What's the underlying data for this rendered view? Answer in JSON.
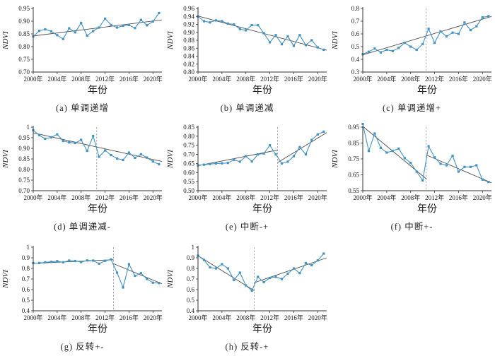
{
  "figure_name": "NDVI trend type examples",
  "axis": {
    "xlabel": "年份",
    "ylabel": "NDVI",
    "x_min": 2000,
    "x_max": 2021.5,
    "x_tick_years": [
      2000,
      2004,
      2008,
      2012,
      2016,
      2020
    ],
    "x_tick_labels": [
      "2000年",
      "2004年",
      "2008年",
      "2012年",
      "2016年",
      "2020年"
    ]
  },
  "colors": {
    "series": "#4393c3",
    "trend": "#4d4d4d",
    "vline": "#9e9e9e",
    "axis": "#333333",
    "text": "#1a1a1a"
  },
  "chart_data": [
    {
      "type": "line",
      "id": "a",
      "title": "(a) 单调递增",
      "xlabel": "年份",
      "ylabel": "NDVI",
      "x_start_year": 2000,
      "x_step": 1,
      "ylim": [
        0.7,
        0.95
      ],
      "yticks": [
        0.7,
        0.75,
        0.8,
        0.85,
        0.9,
        0.95
      ],
      "ytick_labels": [
        "0.70",
        "0.75",
        "0.80",
        "0.85",
        "0.90",
        "0.95"
      ],
      "values": [
        0.84,
        0.862,
        0.868,
        0.86,
        0.845,
        0.83,
        0.872,
        0.856,
        0.893,
        0.843,
        0.861,
        0.875,
        0.91,
        0.885,
        0.875,
        0.882,
        0.885,
        0.873,
        0.905,
        0.884,
        0.899,
        0.932
      ],
      "trend_segments": [
        {
          "x1": 2000,
          "y1": 0.842,
          "x2": 2021.5,
          "y2": 0.905
        }
      ],
      "vline_x": null
    },
    {
      "type": "line",
      "id": "b",
      "title": "(b) 单调递减",
      "xlabel": "年份",
      "ylabel": "NDVI",
      "x_start_year": 2000,
      "x_step": 1,
      "ylim": [
        0.8,
        0.96
      ],
      "yticks": [
        0.8,
        0.82,
        0.84,
        0.86,
        0.88,
        0.9,
        0.92,
        0.94,
        0.96
      ],
      "ytick_labels": [
        "0.80",
        "0.82",
        "0.84",
        "0.86",
        "0.88",
        "0.90",
        "0.92",
        "0.94",
        "0.96"
      ],
      "values": [
        0.94,
        0.928,
        0.925,
        0.93,
        0.928,
        0.922,
        0.92,
        0.908,
        0.905,
        0.918,
        0.918,
        0.898,
        0.875,
        0.893,
        0.87,
        0.89,
        0.866,
        0.893,
        0.868,
        0.88,
        0.862,
        0.856
      ],
      "trend_segments": [
        {
          "x1": 2000,
          "y1": 0.941,
          "x2": 2021.5,
          "y2": 0.855
        }
      ],
      "vline_x": null
    },
    {
      "type": "line",
      "id": "c",
      "title": "(c) 单调递增+",
      "xlabel": "年份",
      "ylabel": "NDVI",
      "x_start_year": 2000,
      "x_step": 1,
      "ylim": [
        0.3,
        0.8
      ],
      "yticks": [
        0.3,
        0.4,
        0.5,
        0.6,
        0.7,
        0.8
      ],
      "ytick_labels": [
        "0.3",
        "0.4",
        "0.5",
        "0.6",
        "0.7",
        "0.8"
      ],
      "values": [
        0.44,
        0.46,
        0.485,
        0.455,
        0.475,
        0.465,
        0.49,
        0.53,
        0.5,
        0.475,
        0.52,
        0.64,
        0.53,
        0.62,
        0.58,
        0.61,
        0.6,
        0.69,
        0.63,
        0.66,
        0.73,
        0.74
      ],
      "trend_segments": [
        {
          "x1": 2000,
          "y1": 0.435,
          "x2": 2021.5,
          "y2": 0.737
        }
      ],
      "vline_x": 2010.6
    },
    {
      "type": "line",
      "id": "d",
      "title": "(d) 单调递减-",
      "xlabel": "年份",
      "ylabel": "NDVI",
      "x_start_year": 2000,
      "x_step": 1,
      "ylim": [
        0.7,
        1.0
      ],
      "yticks": [
        0.7,
        0.75,
        0.8,
        0.85,
        0.9,
        0.95,
        1.0
      ],
      "ytick_labels": [
        "0.70",
        "0.75",
        "0.80",
        "0.85",
        "0.90",
        "0.95",
        "1"
      ],
      "values": [
        0.985,
        0.962,
        0.945,
        0.952,
        0.966,
        0.935,
        0.928,
        0.925,
        0.94,
        0.888,
        0.958,
        0.86,
        0.89,
        0.868,
        0.852,
        0.845,
        0.88,
        0.855,
        0.872,
        0.856,
        0.838,
        0.825
      ],
      "trend_segments": [
        {
          "x1": 2000,
          "y1": 0.973,
          "x2": 2021.5,
          "y2": 0.838
        }
      ],
      "vline_x": 2010.6
    },
    {
      "type": "line",
      "id": "e",
      "title": "(e) 中断-+",
      "xlabel": "年份",
      "ylabel": "NDVI",
      "x_start_year": 2000,
      "x_step": 1,
      "ylim": [
        0.5,
        0.85
      ],
      "yticks": [
        0.5,
        0.55,
        0.6,
        0.65,
        0.7,
        0.75,
        0.8,
        0.85
      ],
      "ytick_labels": [
        "0.50",
        "0.55",
        "0.60",
        "0.65",
        "0.70",
        "0.75",
        "0.80",
        "0.85"
      ],
      "values": [
        0.64,
        0.643,
        0.647,
        0.65,
        0.651,
        0.653,
        0.67,
        0.66,
        0.69,
        0.661,
        0.7,
        0.705,
        0.75,
        0.7,
        0.65,
        0.66,
        0.69,
        0.74,
        0.7,
        0.78,
        0.81,
        0.825
      ],
      "trend_segments": [
        {
          "x1": 2000,
          "y1": 0.638,
          "x2": 2013.3,
          "y2": 0.724
        },
        {
          "x1": 2013.3,
          "y1": 0.655,
          "x2": 2021.5,
          "y2": 0.82
        }
      ],
      "vline_x": 2013.3
    },
    {
      "type": "line",
      "id": "f",
      "title": "(f) 中断+-",
      "xlabel": "年份",
      "ylabel": "NDVI",
      "x_start_year": 2000,
      "x_step": 1,
      "ylim": [
        0.55,
        0.95
      ],
      "yticks": [
        0.55,
        0.65,
        0.75,
        0.85,
        0.95
      ],
      "ytick_labels": [
        "0.55",
        "0.65",
        "0.75",
        "0.85",
        "0.95"
      ],
      "values": [
        0.97,
        0.8,
        0.91,
        0.82,
        0.79,
        0.8,
        0.815,
        0.755,
        0.725,
        0.67,
        0.615,
        0.83,
        0.76,
        0.72,
        0.71,
        0.77,
        0.67,
        0.7,
        0.7,
        0.71,
        0.62,
        0.605
      ],
      "trend_segments": [
        {
          "x1": 2000,
          "y1": 0.955,
          "x2": 2010.6,
          "y2": 0.625
        },
        {
          "x1": 2010.6,
          "y1": 0.775,
          "x2": 2021.5,
          "y2": 0.6
        }
      ],
      "vline_x": 2010.6
    },
    {
      "type": "line",
      "id": "g",
      "title": "(g) 反转+-",
      "xlabel": "年份",
      "ylabel": "NDVI",
      "x_start_year": 2000,
      "x_step": 1,
      "ylim": [
        0.4,
        1.0
      ],
      "yticks": [
        0.4,
        0.5,
        0.6,
        0.7,
        0.8,
        0.9,
        1.0
      ],
      "ytick_labels": [
        "0.4",
        "0.5",
        "0.6",
        "0.7",
        "0.8",
        "0.9",
        "1"
      ],
      "values": [
        0.85,
        0.851,
        0.858,
        0.862,
        0.868,
        0.858,
        0.874,
        0.87,
        0.86,
        0.875,
        0.874,
        0.845,
        0.872,
        0.885,
        0.76,
        0.62,
        0.84,
        0.73,
        0.755,
        0.7,
        0.665,
        0.662
      ],
      "trend_segments": [
        {
          "x1": 2000,
          "y1": 0.848,
          "x2": 2013.4,
          "y2": 0.882
        },
        {
          "x1": 2013.4,
          "y1": 0.845,
          "x2": 2021.5,
          "y2": 0.655
        }
      ],
      "vline_x": 2013.4
    },
    {
      "type": "line",
      "id": "h",
      "title": "(h) 反转-+",
      "xlabel": "年份",
      "ylabel": "NDVI",
      "x_start_year": 2000,
      "x_step": 1,
      "ylim": [
        0.4,
        1.0
      ],
      "yticks": [
        0.4,
        0.5,
        0.6,
        0.7,
        0.8,
        0.9,
        1.0
      ],
      "ytick_labels": [
        "0.4",
        "0.5",
        "0.6",
        "0.7",
        "0.8",
        "0.9",
        "1"
      ],
      "values": [
        0.92,
        0.88,
        0.81,
        0.8,
        0.84,
        0.8,
        0.69,
        0.76,
        0.64,
        0.59,
        0.72,
        0.67,
        0.71,
        0.72,
        0.7,
        0.75,
        0.8,
        0.755,
        0.85,
        0.83,
        0.875,
        0.94
      ],
      "trend_segments": [
        {
          "x1": 2000,
          "y1": 0.92,
          "x2": 2009.4,
          "y2": 0.59
        },
        {
          "x1": 2009.4,
          "y1": 0.665,
          "x2": 2021.5,
          "y2": 0.9
        }
      ],
      "vline_x": 2009.4
    }
  ]
}
